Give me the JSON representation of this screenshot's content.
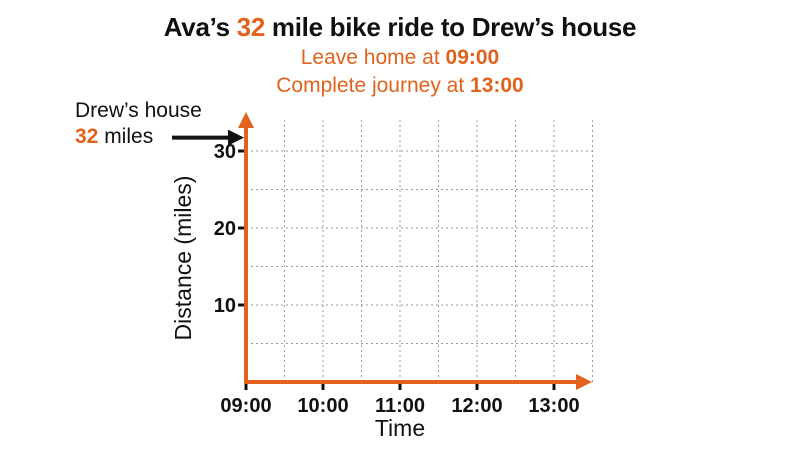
{
  "header": {
    "title_prefix": "Ava’s ",
    "title_highlight": "32",
    "title_suffix": " mile bike ride to Drew’s house",
    "leave_prefix": "Leave home at ",
    "leave_time": "09:00",
    "complete_prefix": "Complete journey at ",
    "complete_time": "13:00"
  },
  "destination": {
    "label": "Drew’s house",
    "distance_value": "32",
    "distance_unit": " miles"
  },
  "colors": {
    "accent": "#e0621d",
    "text": "#111111",
    "grid": "#9a9a9a"
  },
  "chart_data": {
    "type": "line",
    "title": "Ava’s 32 mile bike ride to Drew’s house",
    "xlabel": "Time",
    "ylabel": "Distance (miles)",
    "x_ticks": [
      "09:00",
      "10:00",
      "11:00",
      "12:00",
      "13:00"
    ],
    "y_ticks": [
      10,
      20,
      30
    ],
    "xlim": [
      "09:00",
      "13:30"
    ],
    "ylim": [
      0,
      34
    ],
    "grid": true,
    "grid_minor_x_step_minutes": 30,
    "grid_minor_y_step": 5,
    "destination_marker_y": 32,
    "series": []
  }
}
